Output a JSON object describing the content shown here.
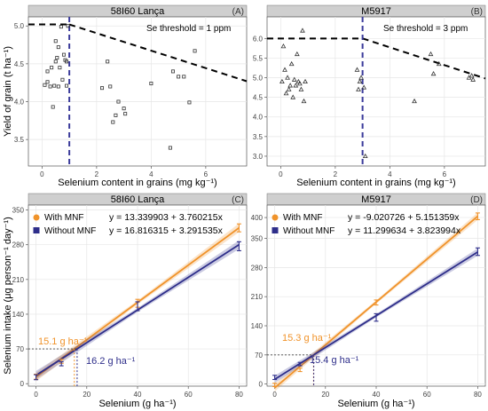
{
  "colors": {
    "strip_fill": "#cfcfcf",
    "with_mnf": "#f0932b",
    "without_mnf": "#2e2e8a",
    "threshold_line": "#3a3a9a",
    "trend_line": "#000000",
    "helper_line": "#444444"
  },
  "shared": {
    "top_xlabel": "Selenium content in grains (mg kg⁻¹)",
    "top_ylabel": "Yield of grain (t ha⁻¹)",
    "bottom_xlabel": "Selenium (g ha⁻¹)",
    "bottom_ylabel": "Selenium intake (μg person⁻¹ day⁻¹)"
  },
  "chart_data": [
    {
      "id": "A",
      "type": "scatter",
      "strip_title": "58I60 Lança",
      "panel_letter": "(A)",
      "annotation": "Se threshold  = 1 ppm",
      "marker": "square",
      "threshold_x": 1.0,
      "plateau_y": 5.02,
      "trend_end": [
        7.5,
        4.27
      ],
      "xlim": [
        -0.5,
        7.5
      ],
      "ylim": [
        3.15,
        5.12
      ],
      "xticks": [
        0,
        2,
        4,
        6
      ],
      "yticks": [
        3.5,
        4.0,
        4.5,
        5.0
      ],
      "ytick_labels": [
        "3.5",
        "4.0",
        "4.5",
        "5.0"
      ],
      "x": [
        0.1,
        0.2,
        0.2,
        0.3,
        0.35,
        0.4,
        0.45,
        0.5,
        0.5,
        0.55,
        0.6,
        0.6,
        0.65,
        0.7,
        0.75,
        0.8,
        0.85,
        0.9,
        0.9,
        0.95,
        2.2,
        2.4,
        2.5,
        2.6,
        2.7,
        2.8,
        3.0,
        3.05,
        4.0,
        4.7,
        4.8,
        5.0,
        5.2,
        5.4,
        5.6
      ],
      "y": [
        4.22,
        4.26,
        4.4,
        4.2,
        4.45,
        3.93,
        4.21,
        4.8,
        4.53,
        4.58,
        4.2,
        4.72,
        4.45,
        4.99,
        4.29,
        4.62,
        4.55,
        4.53,
        4.21,
        5.0,
        4.18,
        4.53,
        4.2,
        3.73,
        3.82,
        4.0,
        3.91,
        3.84,
        4.24,
        3.39,
        4.4,
        4.33,
        4.33,
        3.99,
        4.67
      ]
    },
    {
      "id": "B",
      "type": "scatter",
      "strip_title": "M5917",
      "panel_letter": "(B)",
      "annotation": "Se threshold  = 3 ppm",
      "marker": "triangle",
      "threshold_x": 3.0,
      "plateau_y": 6.0,
      "trend_end": [
        7.5,
        4.98
      ],
      "xlim": [
        -0.5,
        7.5
      ],
      "ylim": [
        2.75,
        6.55
      ],
      "xticks": [
        0,
        2,
        4,
        6
      ],
      "yticks": [
        3.0,
        3.5,
        4.0,
        4.5,
        5.0,
        5.5,
        6.0
      ],
      "ytick_labels": [
        "3.0",
        "3.5",
        "4.0",
        "4.5",
        "5.0",
        "5.5",
        "6.0"
      ],
      "x": [
        0.05,
        0.1,
        0.15,
        0.2,
        0.25,
        0.3,
        0.35,
        0.4,
        0.45,
        0.5,
        0.55,
        0.6,
        0.65,
        0.7,
        0.75,
        0.8,
        0.85,
        0.9,
        2.8,
        2.85,
        2.9,
        2.95,
        3.05,
        3.1,
        4.9,
        5.5,
        5.6,
        5.8,
        6.9,
        7.0,
        7.05
      ],
      "y": [
        4.9,
        5.8,
        5.2,
        4.6,
        5.0,
        4.7,
        4.8,
        5.35,
        4.5,
        4.95,
        4.8,
        5.6,
        4.9,
        4.85,
        4.7,
        6.2,
        4.4,
        4.9,
        5.2,
        4.7,
        4.9,
        5.0,
        4.75,
        3.0,
        4.4,
        5.6,
        5.1,
        5.35,
        5.0,
        5.05,
        4.95
      ]
    },
    {
      "id": "C",
      "type": "line",
      "strip_title": "58I60 Lança",
      "panel_letter": "(C)",
      "xlim": [
        -3,
        83
      ],
      "ylim": [
        -5,
        360
      ],
      "xticks": [
        0,
        20,
        40,
        60,
        80
      ],
      "yticks": [
        0,
        70,
        140,
        210,
        280,
        350
      ],
      "series": [
        {
          "name": "With MNF",
          "equation": "y = 13.339903 + 3.760215x",
          "intercept": 13.339903,
          "slope": 3.760215,
          "points": {
            "x": [
              0,
              10,
              40,
              80
            ],
            "y": [
              14,
              45,
              162,
              314
            ],
            "err": [
              5,
              4,
              8,
              8
            ]
          }
        },
        {
          "name": "Without MNF",
          "equation": "y = 16.816315 + 3.291535x",
          "intercept": 16.816315,
          "slope": 3.291535,
          "points": {
            "x": [
              0,
              10,
              40,
              80
            ],
            "y": [
              13,
              40,
              156,
              277
            ],
            "err": [
              5,
              4,
              9,
              9
            ]
          }
        }
      ],
      "threshold_y": 70,
      "annotations": [
        {
          "text": "15.1 g ha⁻¹",
          "x": 15.1,
          "series": "With MNF"
        },
        {
          "text": "16.2 g ha⁻¹",
          "x": 16.2,
          "series": "Without MNF"
        }
      ]
    },
    {
      "id": "D",
      "type": "line",
      "strip_title": "M5917",
      "panel_letter": "(D)",
      "xlim": [
        -3,
        83
      ],
      "ylim": [
        -5,
        430
      ],
      "xticks": [
        0,
        20,
        40,
        60,
        80
      ],
      "yticks": [
        0,
        70,
        140,
        210,
        280,
        350,
        400
      ],
      "series": [
        {
          "name": "With MNF",
          "equation": "y = -9.020726 + 5.151359x",
          "intercept": -9.020726,
          "slope": 5.151359,
          "points": {
            "x": [
              0,
              10,
              40,
              80
            ],
            "y": [
              -2,
              34,
              196,
              403
            ],
            "err": [
              4,
              4,
              6,
              8
            ]
          }
        },
        {
          "name": "Without MNF",
          "equation": "y = 11.299634 + 3.823994x",
          "intercept": 11.299634,
          "slope": 3.823994,
          "points": {
            "x": [
              0,
              10,
              40,
              80
            ],
            "y": [
              16,
              48,
              160,
              318
            ],
            "err": [
              5,
              4,
              9,
              9
            ]
          }
        }
      ],
      "threshold_y": 70,
      "annotations": [
        {
          "text": "15.3 g ha⁻¹",
          "x": 15.3,
          "series": "With MNF"
        },
        {
          "text": "15.4 g ha⁻¹",
          "x": 15.4,
          "series": "Without MNF"
        }
      ]
    }
  ]
}
